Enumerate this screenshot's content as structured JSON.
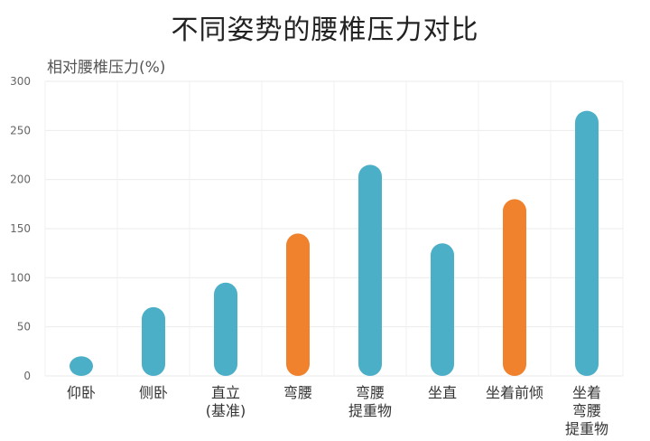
{
  "chart_data": {
    "type": "bar",
    "title": "不同姿势的腰椎压力对比",
    "ylabel": "相对腰椎压力(%)",
    "xlabel": "",
    "ylim": [
      0,
      300
    ],
    "yticks": [
      0,
      50,
      100,
      150,
      200,
      250,
      300
    ],
    "grid": true,
    "categories": [
      [
        "仰卧"
      ],
      [
        "侧卧"
      ],
      [
        "直立",
        "(基准)"
      ],
      [
        "弯腰"
      ],
      [
        "弯腰",
        "提重物"
      ],
      [
        "坐直"
      ],
      [
        "坐着前倾"
      ],
      [
        "坐着",
        "弯腰",
        "提重物"
      ]
    ],
    "values": [
      20,
      70,
      95,
      145,
      215,
      135,
      180,
      270
    ],
    "colors": [
      "#4bafc7",
      "#4bafc7",
      "#4bafc7",
      "#f0822d",
      "#4bafc7",
      "#4bafc7",
      "#f0822d",
      "#4bafc7"
    ]
  }
}
